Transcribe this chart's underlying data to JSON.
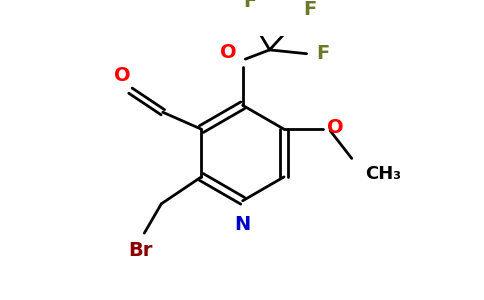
{
  "background_color": "#ffffff",
  "bond_color": "#000000",
  "atom_colors": {
    "O": "#ff0000",
    "N": "#0000cc",
    "Br": "#8b0000",
    "F": "#6b7a2a",
    "C": "#000000"
  },
  "figsize": [
    4.84,
    3.0
  ],
  "dpi": 100
}
